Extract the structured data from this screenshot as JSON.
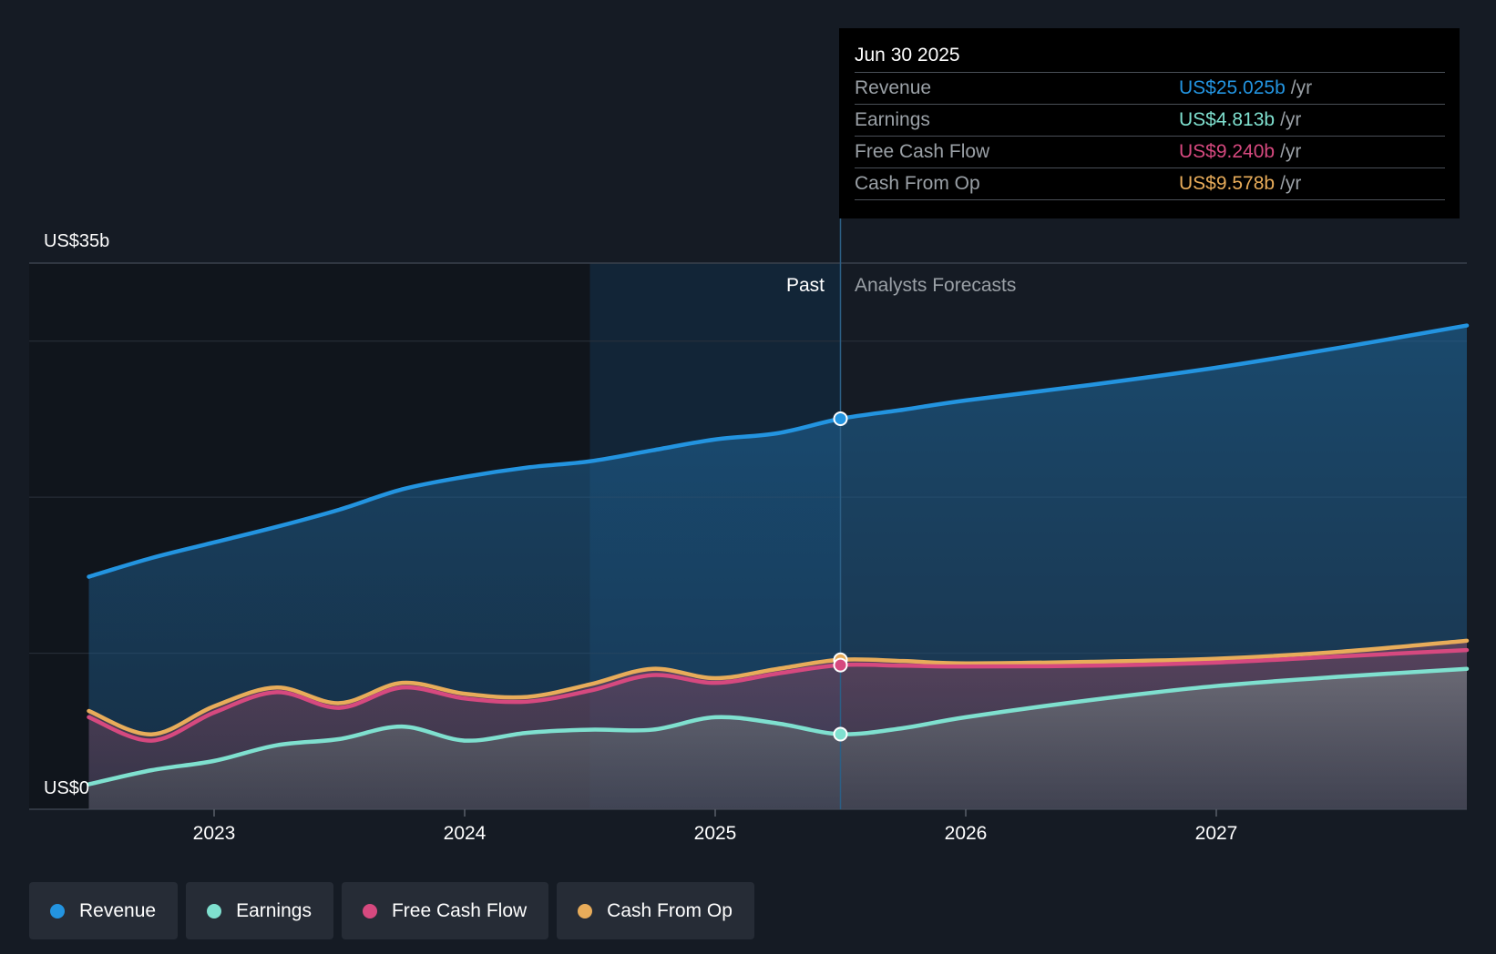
{
  "chart_data": {
    "type": "area",
    "y_top_label": "US$35b",
    "y_bottom_label": "US$0",
    "ylim": [
      0,
      35
    ],
    "xlim": [
      2022.5,
      2028.0
    ],
    "x_ticks": [
      "2023",
      "2024",
      "2025",
      "2026",
      "2027"
    ],
    "x_tick_values": [
      2023,
      2024,
      2025,
      2026,
      2027
    ],
    "grid": true,
    "past_label": "Past",
    "forecast_label": "Analysts Forecasts",
    "past_end": 2025.5,
    "highlight_start": 2024.5,
    "series": [
      {
        "name": "Revenue",
        "color": "#2394e0",
        "points": [
          [
            2022.5,
            14.9
          ],
          [
            2022.75,
            16.1
          ],
          [
            2023.0,
            17.1
          ],
          [
            2023.25,
            18.1
          ],
          [
            2023.5,
            19.2
          ],
          [
            2023.75,
            20.5
          ],
          [
            2024.0,
            21.3
          ],
          [
            2024.25,
            21.9
          ],
          [
            2024.5,
            22.3
          ],
          [
            2024.75,
            23.0
          ],
          [
            2025.0,
            23.7
          ],
          [
            2025.25,
            24.1
          ],
          [
            2025.5,
            25.025
          ],
          [
            2025.75,
            25.6
          ],
          [
            2026.0,
            26.2
          ],
          [
            2026.5,
            27.2
          ],
          [
            2027.0,
            28.3
          ],
          [
            2027.5,
            29.6
          ],
          [
            2028.0,
            31.0
          ]
        ]
      },
      {
        "name": "Cash From Op",
        "color": "#e8ac5a",
        "points": [
          [
            2022.5,
            6.3
          ],
          [
            2022.75,
            4.8
          ],
          [
            2023.0,
            6.6
          ],
          [
            2023.25,
            7.8
          ],
          [
            2023.5,
            6.8
          ],
          [
            2023.75,
            8.1
          ],
          [
            2024.0,
            7.4
          ],
          [
            2024.25,
            7.2
          ],
          [
            2024.5,
            8.0
          ],
          [
            2024.75,
            9.0
          ],
          [
            2025.0,
            8.4
          ],
          [
            2025.25,
            9.0
          ],
          [
            2025.5,
            9.578
          ],
          [
            2025.75,
            9.5
          ],
          [
            2026.0,
            9.35
          ],
          [
            2026.5,
            9.45
          ],
          [
            2027.0,
            9.65
          ],
          [
            2027.5,
            10.1
          ],
          [
            2028.0,
            10.8
          ]
        ]
      },
      {
        "name": "Free Cash Flow",
        "color": "#d6497f",
        "points": [
          [
            2022.5,
            5.9
          ],
          [
            2022.75,
            4.4
          ],
          [
            2023.0,
            6.2
          ],
          [
            2023.25,
            7.5
          ],
          [
            2023.5,
            6.5
          ],
          [
            2023.75,
            7.8
          ],
          [
            2024.0,
            7.1
          ],
          [
            2024.25,
            6.9
          ],
          [
            2024.5,
            7.6
          ],
          [
            2024.75,
            8.6
          ],
          [
            2025.0,
            8.1
          ],
          [
            2025.25,
            8.7
          ],
          [
            2025.5,
            9.24
          ],
          [
            2025.75,
            9.2
          ],
          [
            2026.0,
            9.15
          ],
          [
            2026.5,
            9.2
          ],
          [
            2027.0,
            9.4
          ],
          [
            2027.5,
            9.8
          ],
          [
            2028.0,
            10.2
          ]
        ]
      },
      {
        "name": "Earnings",
        "color": "#7fe0cf",
        "points": [
          [
            2022.5,
            1.6
          ],
          [
            2022.75,
            2.5
          ],
          [
            2023.0,
            3.1
          ],
          [
            2023.25,
            4.1
          ],
          [
            2023.5,
            4.5
          ],
          [
            2023.75,
            5.3
          ],
          [
            2024.0,
            4.4
          ],
          [
            2024.25,
            4.9
          ],
          [
            2024.5,
            5.1
          ],
          [
            2024.75,
            5.1
          ],
          [
            2025.0,
            5.9
          ],
          [
            2025.25,
            5.5
          ],
          [
            2025.5,
            4.813
          ],
          [
            2025.75,
            5.2
          ],
          [
            2026.0,
            5.9
          ],
          [
            2026.5,
            7.0
          ],
          [
            2027.0,
            7.9
          ],
          [
            2027.5,
            8.5
          ],
          [
            2028.0,
            9.0
          ]
        ]
      }
    ]
  },
  "tooltip": {
    "date": "Jun 30 2025",
    "unit": "/yr",
    "rows": [
      {
        "label": "Revenue",
        "value": "US$25.025b",
        "color": "#2394e0"
      },
      {
        "label": "Earnings",
        "value": "US$4.813b",
        "color": "#7fe0cf"
      },
      {
        "label": "Free Cash Flow",
        "value": "US$9.240b",
        "color": "#d6497f"
      },
      {
        "label": "Cash From Op",
        "value": "US$9.578b",
        "color": "#e8ac5a"
      }
    ]
  },
  "legend": [
    {
      "label": "Revenue",
      "color": "#2394e0"
    },
    {
      "label": "Earnings",
      "color": "#7fe0cf"
    },
    {
      "label": "Free Cash Flow",
      "color": "#d6497f"
    },
    {
      "label": "Cash From Op",
      "color": "#e8ac5a"
    }
  ]
}
